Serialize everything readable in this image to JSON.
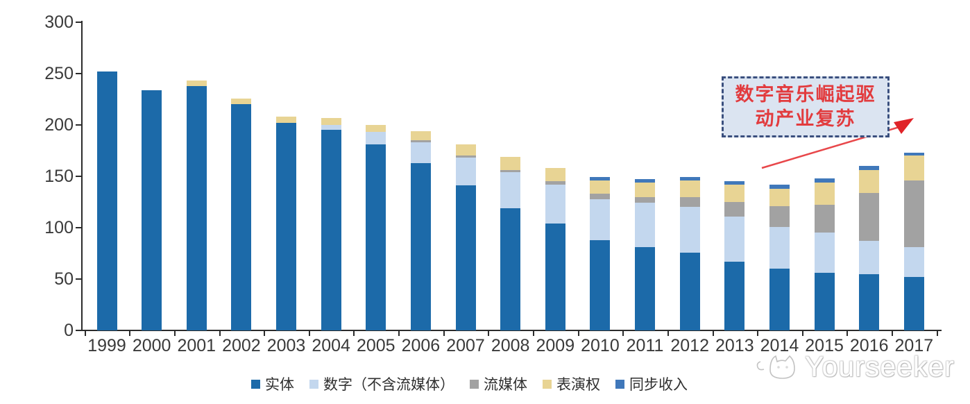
{
  "chart_data": {
    "type": "bar",
    "stacked": true,
    "title": "",
    "xlabel": "",
    "ylabel": "",
    "ylim": [
      0,
      300
    ],
    "yticks": [
      0,
      50,
      100,
      150,
      200,
      250,
      300
    ],
    "grid": false,
    "legend_position": "bottom",
    "categories": [
      "1999",
      "2000",
      "2001",
      "2002",
      "2003",
      "2004",
      "2005",
      "2006",
      "2007",
      "2008",
      "2009",
      "2010",
      "2011",
      "2012",
      "2013",
      "2014",
      "2015",
      "2016",
      "2017"
    ],
    "series": [
      {
        "name": "实体",
        "color": "#1c6aa9",
        "values": [
          252,
          234,
          238,
          220,
          202,
          195,
          181,
          163,
          141,
          119,
          104,
          88,
          81,
          76,
          67,
          60,
          56,
          55,
          52
        ]
      },
      {
        "name": "数字（不含流媒体）",
        "color": "#c3d7ee",
        "values": [
          0,
          0,
          0,
          0,
          0,
          5,
          12,
          20,
          27,
          35,
          38,
          40,
          43,
          44,
          44,
          41,
          39,
          32,
          29
        ]
      },
      {
        "name": "流媒体",
        "color": "#a2a2a2",
        "values": [
          0,
          0,
          0,
          0,
          0,
          0,
          0,
          2,
          2,
          2,
          3,
          5,
          6,
          10,
          14,
          20,
          27,
          47,
          65
        ]
      },
      {
        "name": "表演权",
        "color": "#e8d494",
        "values": [
          0,
          0,
          5,
          6,
          6,
          7,
          7,
          9,
          11,
          13,
          13,
          13,
          14,
          16,
          17,
          17,
          22,
          22,
          24
        ]
      },
      {
        "name": "同步收入",
        "color": "#4078ba",
        "values": [
          0,
          0,
          0,
          0,
          0,
          0,
          0,
          0,
          0,
          0,
          0,
          3,
          3,
          3,
          3,
          4,
          4,
          4,
          3
        ]
      }
    ]
  },
  "annotation": {
    "line1": "数字音乐崛起驱",
    "line2": "动产业复苏",
    "text_color": "#e23b3e"
  },
  "watermark": {
    "text": "Yourseeker"
  }
}
